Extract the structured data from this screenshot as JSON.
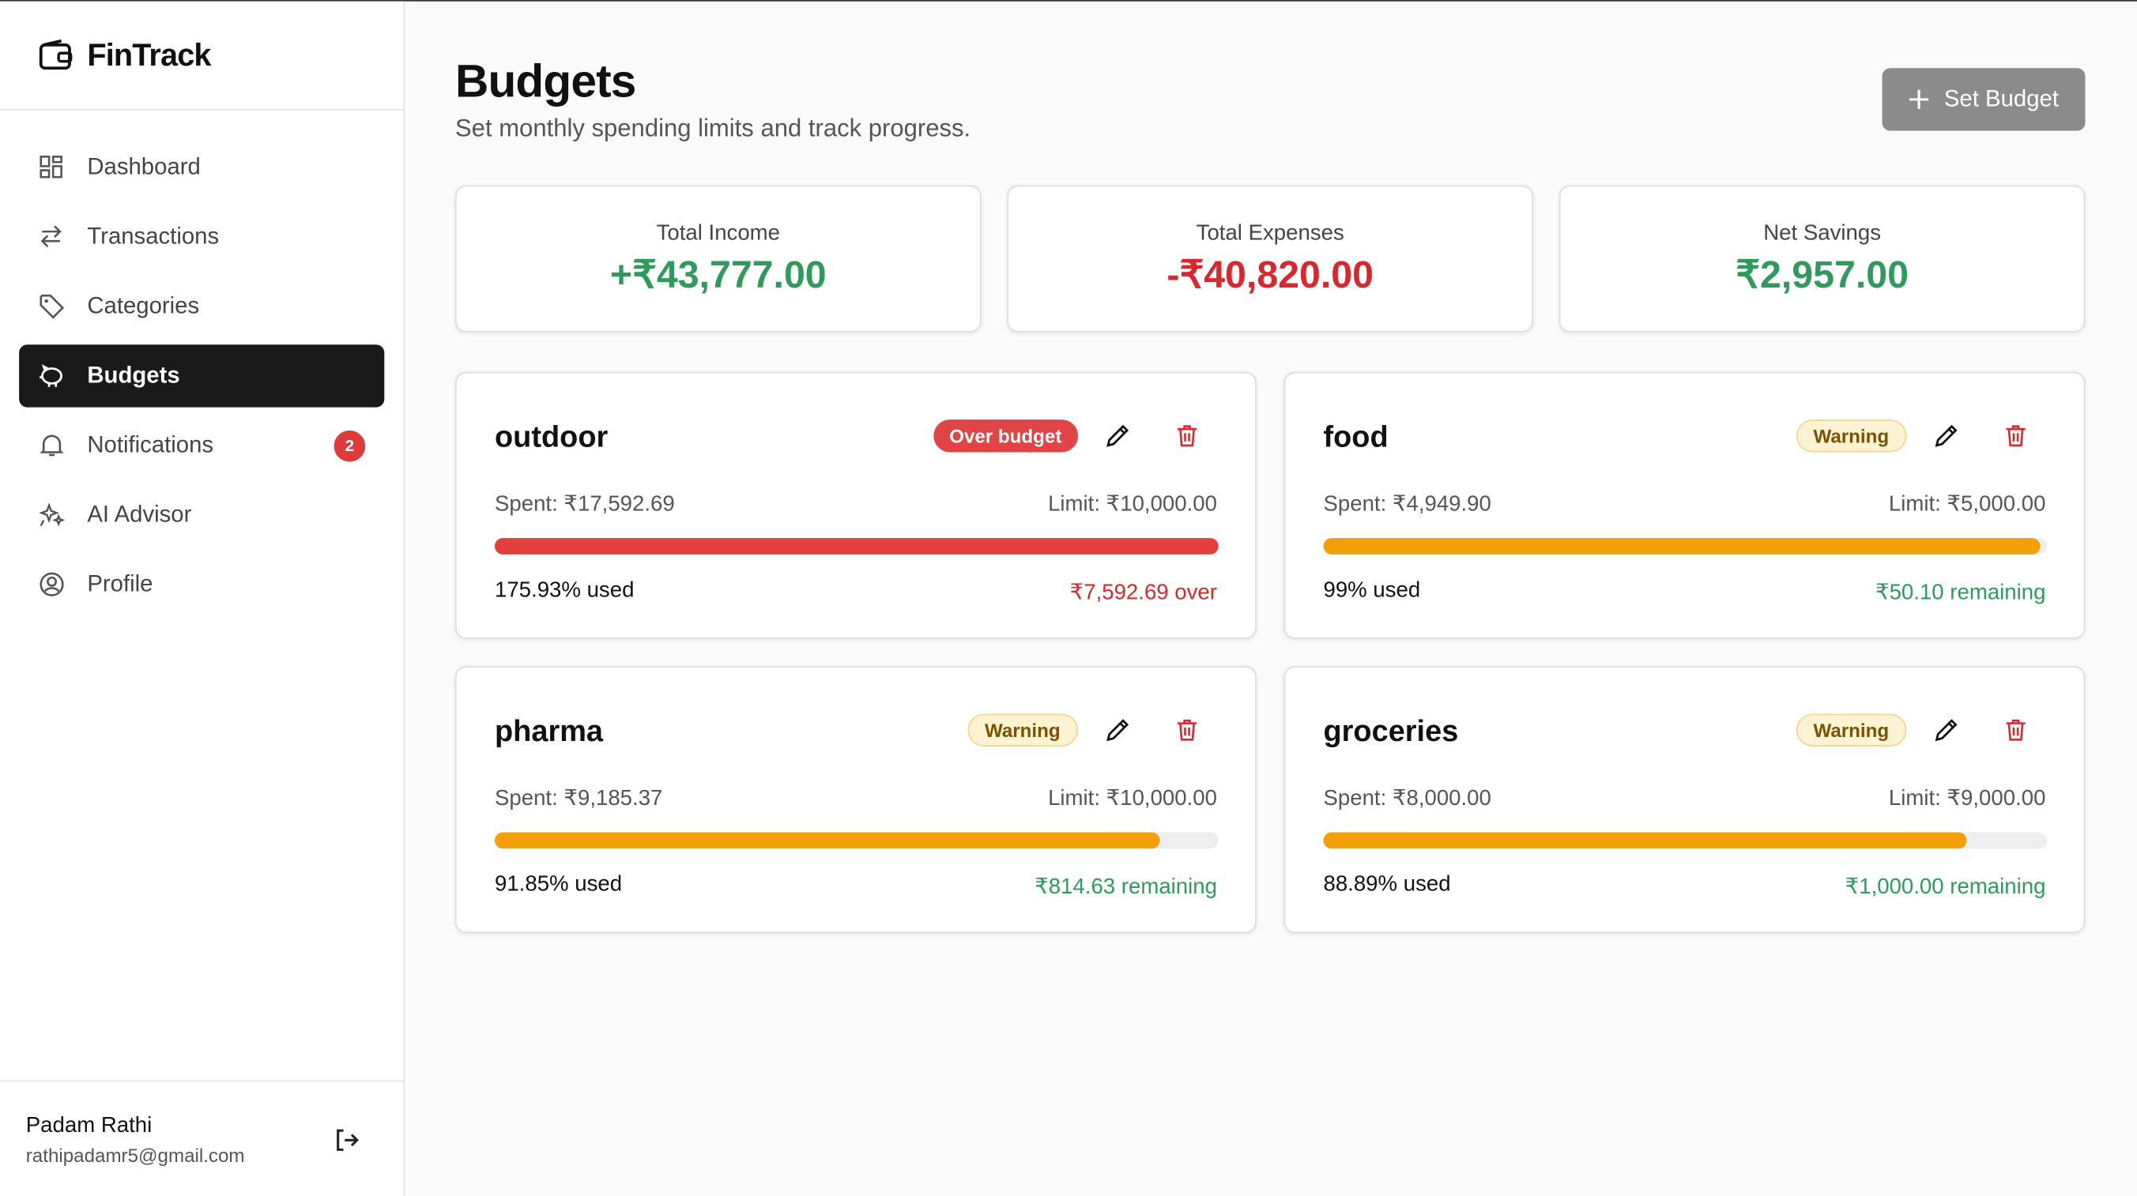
{
  "sidebar": {
    "brand": "FinTrack",
    "nav": [
      {
        "label": "Dashboard"
      },
      {
        "label": "Transactions"
      },
      {
        "label": "Categories"
      },
      {
        "label": "Budgets"
      },
      {
        "label": "Notifications",
        "badge": "2"
      },
      {
        "label": "AI Advisor"
      },
      {
        "label": "Profile"
      }
    ],
    "user": {
      "name": "Padam Rathi",
      "email": "rathipadamr5@gmail.com"
    }
  },
  "header": {
    "title": "Budgets",
    "subtitle": "Set monthly spending limits and track progress.",
    "button": "Set Budget"
  },
  "summary": [
    {
      "label": "Total Income",
      "value": "+₹43,777.00"
    },
    {
      "label": "Total Expenses",
      "value": "-₹40,820.00"
    },
    {
      "label": "Net Savings",
      "value": "₹2,957.00"
    }
  ],
  "budgets": [
    {
      "name": "outdoor",
      "status": "Over budget",
      "spent": "Spent: ₹17,592.69",
      "limit": "Limit: ₹10,000.00",
      "used": 175.93,
      "used_label": "175.93% used",
      "remaining": "₹7,592.69 over"
    },
    {
      "name": "food",
      "status": "Warning",
      "spent": "Spent: ₹4,949.90",
      "limit": "Limit: ₹5,000.00",
      "used": 99,
      "used_label": "99% used",
      "remaining": "₹50.10 remaining"
    },
    {
      "name": "pharma",
      "status": "Warning",
      "spent": "Spent: ₹9,185.37",
      "limit": "Limit: ₹10,000.00",
      "used": 91.85,
      "used_label": "91.85% used",
      "remaining": "₹814.63 remaining"
    },
    {
      "name": "groceries",
      "status": "Warning",
      "spent": "Spent: ₹8,000.00",
      "limit": "Limit: ₹9,000.00",
      "used": 88.89,
      "used_label": "88.89% used",
      "remaining": "₹1,000.00 remaining"
    }
  ]
}
